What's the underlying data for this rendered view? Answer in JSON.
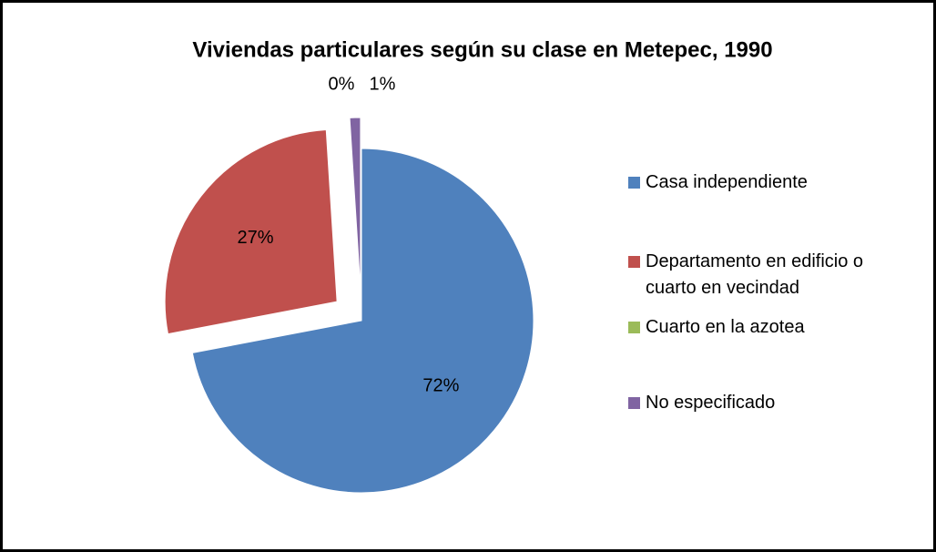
{
  "chart_data": {
    "type": "pie",
    "title": "Viviendas particulares según su clase en Metepec, 1990",
    "categories": [
      "Casa independiente",
      "Departamento en edificio o cuarto en vecindad",
      "Cuarto en la azotea",
      "No especificado"
    ],
    "values": [
      72,
      27,
      0,
      1
    ],
    "value_labels": [
      "72%",
      "27%",
      "0%",
      "1%"
    ],
    "colors": [
      "#4f81bd",
      "#c0504d",
      "#9bbb59",
      "#8064a2"
    ]
  }
}
